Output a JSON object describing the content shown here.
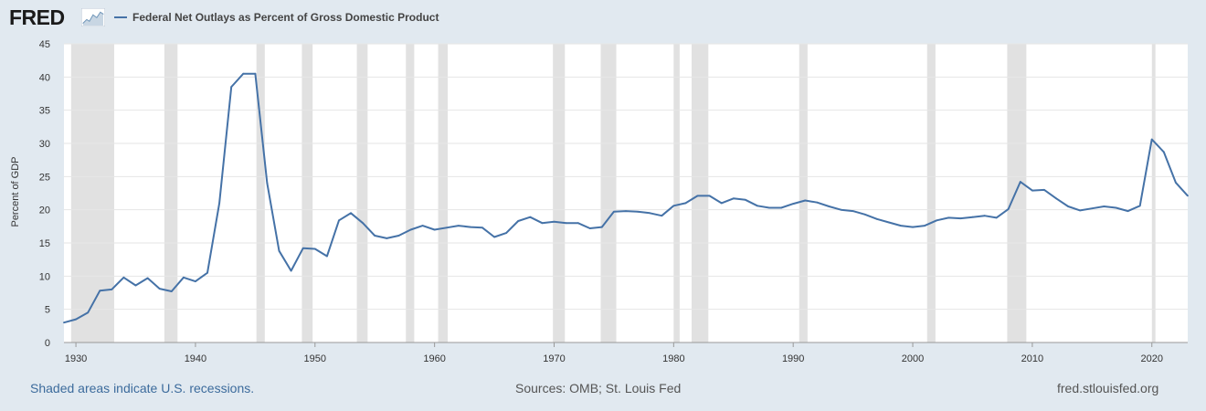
{
  "header": {
    "logo_text": "FRED",
    "logo_icon": "line-chart-icon",
    "legend_label": "Federal Net Outlays as Percent of Gross Domestic Product"
  },
  "footer": {
    "recession_note": "Shaded areas indicate U.S. recessions.",
    "sources": "Sources: OMB; St. Louis Fed",
    "site": "fred.stlouisfed.org"
  },
  "colors": {
    "line": "#4572a7",
    "recession": "#e1e1e1",
    "grid": "#e6e6e6",
    "background": "#e1e9f0"
  },
  "chart_data": {
    "type": "line",
    "title": "",
    "xlabel": "",
    "ylabel": "Percent of GDP",
    "xlim": [
      1929,
      2023
    ],
    "ylim": [
      0,
      45
    ],
    "yticks": [
      0,
      5,
      10,
      15,
      20,
      25,
      30,
      35,
      40,
      45
    ],
    "xticks": [
      1930,
      1940,
      1950,
      1960,
      1970,
      1980,
      1990,
      2000,
      2010,
      2020
    ],
    "grid": true,
    "legend": "top-left",
    "recessions": [
      [
        1929.6,
        1933.2
      ],
      [
        1937.4,
        1938.5
      ],
      [
        1945.1,
        1945.8
      ],
      [
        1948.9,
        1949.8
      ],
      [
        1953.5,
        1954.4
      ],
      [
        1957.6,
        1958.3
      ],
      [
        1960.3,
        1961.1
      ],
      [
        1969.9,
        1970.9
      ],
      [
        1973.9,
        1975.2
      ],
      [
        1980.0,
        1980.5
      ],
      [
        1981.5,
        1982.9
      ],
      [
        1990.5,
        1991.2
      ],
      [
        2001.2,
        2001.9
      ],
      [
        2007.9,
        2009.5
      ],
      [
        2020.0,
        2020.3
      ]
    ],
    "series": [
      {
        "name": "Federal Net Outlays as Percent of Gross Domestic Product",
        "x": [
          1929,
          1930,
          1931,
          1932,
          1933,
          1934,
          1935,
          1936,
          1937,
          1938,
          1939,
          1940,
          1941,
          1942,
          1943,
          1944,
          1945,
          1946,
          1947,
          1948,
          1949,
          1950,
          1951,
          1952,
          1953,
          1954,
          1955,
          1956,
          1957,
          1958,
          1959,
          1960,
          1961,
          1962,
          1963,
          1964,
          1965,
          1966,
          1967,
          1968,
          1969,
          1970,
          1971,
          1972,
          1973,
          1974,
          1975,
          1976,
          1977,
          1978,
          1979,
          1980,
          1981,
          1982,
          1983,
          1984,
          1985,
          1986,
          1987,
          1988,
          1989,
          1990,
          1991,
          1992,
          1993,
          1994,
          1995,
          1996,
          1997,
          1998,
          1999,
          2000,
          2001,
          2002,
          2003,
          2004,
          2005,
          2006,
          2007,
          2008,
          2009,
          2010,
          2011,
          2012,
          2013,
          2014,
          2015,
          2016,
          2017,
          2018,
          2019,
          2020,
          2021,
          2022,
          2023
        ],
        "values": [
          3.0,
          3.5,
          4.5,
          7.8,
          8.0,
          9.8,
          8.6,
          9.7,
          8.1,
          7.7,
          9.8,
          9.2,
          10.5,
          21.0,
          38.5,
          40.5,
          40.5,
          24.0,
          13.8,
          10.8,
          14.2,
          14.1,
          13.0,
          18.4,
          19.5,
          18.0,
          16.1,
          15.7,
          16.1,
          17.0,
          17.6,
          17.0,
          17.3,
          17.6,
          17.4,
          17.3,
          15.9,
          16.5,
          18.3,
          18.9,
          18.0,
          18.2,
          18.0,
          18.0,
          17.2,
          17.4,
          19.7,
          19.8,
          19.7,
          19.5,
          19.1,
          20.6,
          21.0,
          22.1,
          22.1,
          21.0,
          21.7,
          21.5,
          20.6,
          20.3,
          20.3,
          20.9,
          21.4,
          21.1,
          20.5,
          20.0,
          19.8,
          19.3,
          18.6,
          18.1,
          17.6,
          17.4,
          17.6,
          18.4,
          18.8,
          18.7,
          18.9,
          19.1,
          18.8,
          20.1,
          24.2,
          22.9,
          23.0,
          21.7,
          20.5,
          19.9,
          20.2,
          20.5,
          20.3,
          19.8,
          20.6,
          30.6,
          28.7,
          24.1,
          22.1
        ]
      }
    ]
  }
}
